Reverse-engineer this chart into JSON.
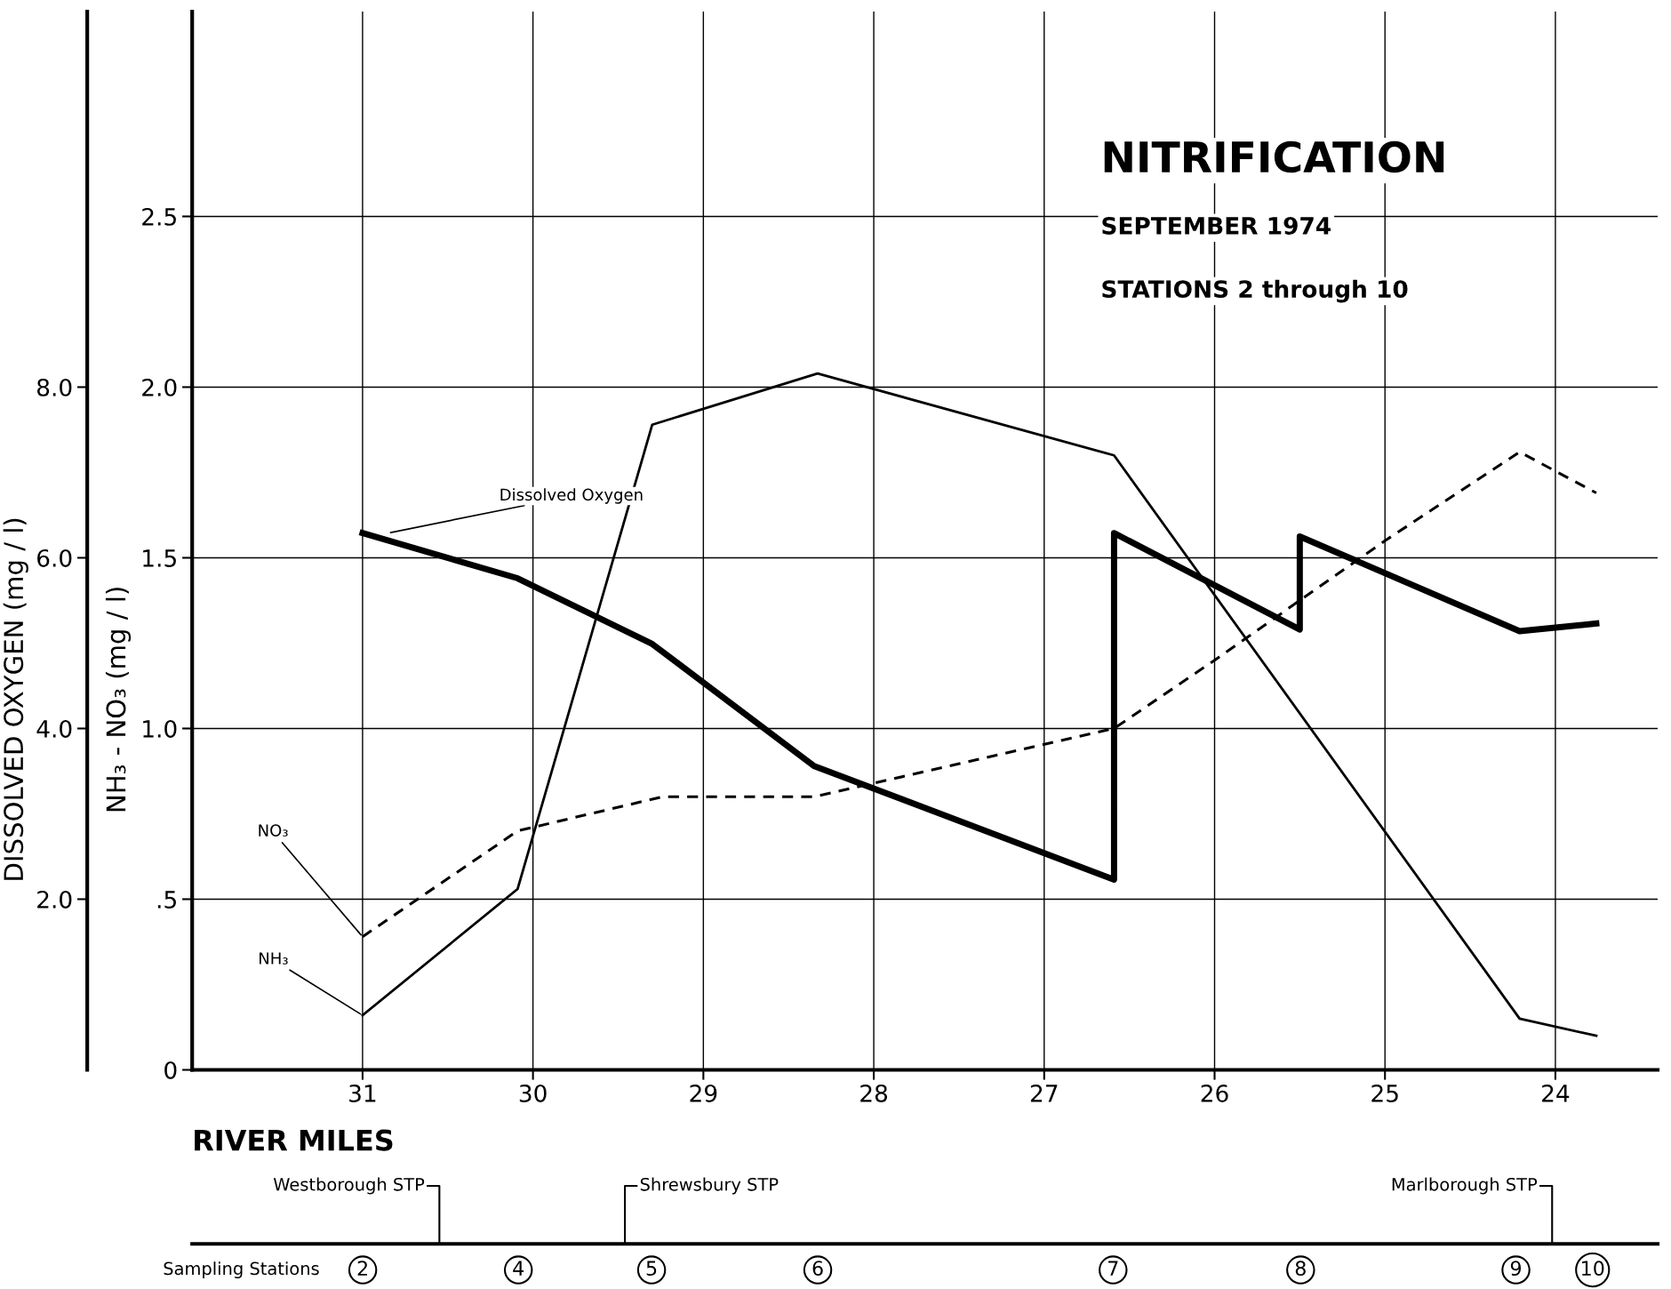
{
  "chart_data": [
    {
      "type": "line",
      "title": "NITRIFICATION",
      "subtitle": "SEPTEMBER 1974",
      "xlabel": "RIVER MILES",
      "ylabel": "NH₃ - NO₃ (mg / l)",
      "y2label": "DISSOLVED OXYGEN (mg / l)",
      "annotations": [
        "STATIONS 2 through 10"
      ],
      "xlim": [
        32,
        23.4
      ],
      "xticks": [
        31,
        30,
        29,
        28,
        27,
        26,
        25,
        24
      ],
      "ylim": [
        0,
        3.1
      ],
      "yticks": [
        {
          "value": 0,
          "label": "0"
        },
        {
          "value": 0.5,
          "label": ".5"
        },
        {
          "value": 1,
          "label": "1.0"
        },
        {
          "value": 1.5,
          "label": "1.5"
        },
        {
          "value": 2,
          "label": "2.0"
        },
        {
          "value": 2.5,
          "label": "2.5"
        }
      ],
      "y2lim": [
        0,
        12.4
      ],
      "y2ticks": [
        {
          "value": 2,
          "label": "2.0"
        },
        {
          "value": 4,
          "label": "4.0"
        },
        {
          "value": 6,
          "label": "6.0"
        },
        {
          "value": 8,
          "label": "8.0"
        }
      ],
      "grid": true,
      "legend": false,
      "series": [
        {
          "name": "Dissolved Oxygen",
          "color": "#000000",
          "axis": "y2",
          "line_style": "solid",
          "x": [
            31,
            30.09,
            29.3,
            28.35,
            26.59,
            26.59,
            25.5,
            25.5,
            24.21,
            23.76
          ],
          "values": [
            6.29,
            5.76,
            4.99,
            3.56,
            2.23,
            6.29,
            5.16,
            6.25,
            5.14,
            5.23
          ]
        },
        {
          "name": "NO₃",
          "color": "#000000",
          "line_style": "dashed",
          "x": [
            31,
            30.09,
            29.24,
            28.35,
            26.59,
            26.0,
            25.0,
            24.21,
            23.76
          ],
          "values": [
            0.39,
            0.7,
            0.8,
            0.8,
            1.0,
            1.2,
            1.55,
            1.81,
            1.69
          ]
        },
        {
          "name": "NH₃",
          "color": "#000000",
          "line_style": "solid",
          "x": [
            31,
            30.09,
            29.3,
            28.33,
            26.59,
            24.21,
            23.76
          ],
          "values": [
            0.16,
            0.53,
            1.89,
            2.04,
            1.8,
            0.15,
            0.1
          ]
        }
      ]
    },
    {
      "type": "other",
      "categories": [
        "2",
        "4",
        "5",
        "6",
        "7",
        "8",
        "9",
        "10"
      ],
      "annotations": [
        "Sampling Stations",
        "Westborough STP",
        "Shrewsbury STP",
        "Marlborough STP"
      ]
    }
  ]
}
